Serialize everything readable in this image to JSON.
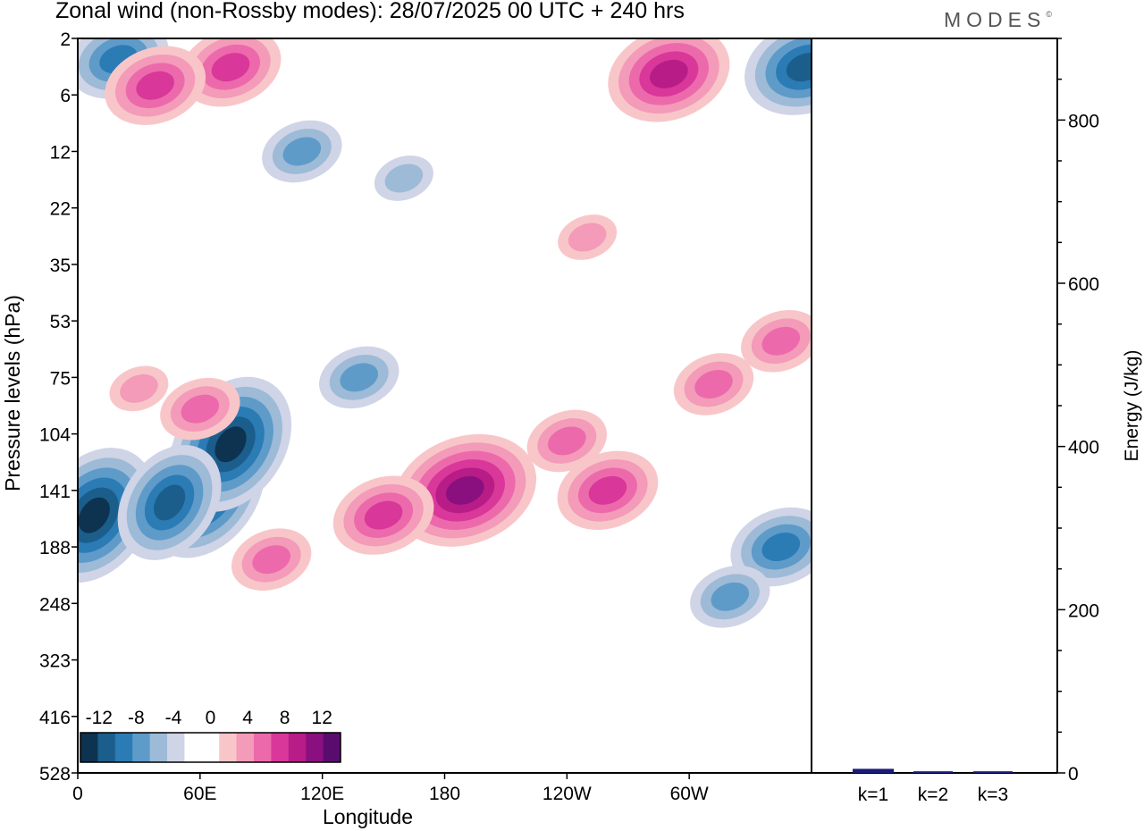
{
  "title": "Zonal wind (non-Rossby modes):  28/07/2025  00 UTC  + 240 hrs",
  "logo": "MODES",
  "logo_mark": "©",
  "colors": {
    "neg6": "#0d3350",
    "neg5": "#1b5e8c",
    "neg4": "#2b7bb5",
    "neg3": "#5e9bc9",
    "neg2": "#9dbad7",
    "neg1": "#cfd4e6",
    "zero": "#ffffff",
    "pos1": "#f8c6c9",
    "pos2": "#f39bb9",
    "pos3": "#ec6aab",
    "pos4": "#d93799",
    "pos5": "#b81c86",
    "pos6": "#8a1080",
    "pos7": "#5a0c6e",
    "bar": "#1a1a7a"
  },
  "chart_data": [
    {
      "type": "heatmap",
      "title": "Zonal wind (non-Rossby modes):  28/07/2025  00 UTC  + 240 hrs",
      "xlabel": "Longitude",
      "ylabel": "Pressure levels (hPa)",
      "x_ticks": [
        "0",
        "60E",
        "120E",
        "180",
        "120W",
        "60W"
      ],
      "x_tick_values": [
        0,
        60,
        120,
        180,
        240,
        300
      ],
      "xlim": [
        0,
        360
      ],
      "y_ticks": [
        "2",
        "6",
        "12",
        "22",
        "35",
        "53",
        "75",
        "104",
        "141",
        "188",
        "248",
        "323",
        "416",
        "528"
      ],
      "colorbar": {
        "labels": [
          "-12",
          "-8",
          "-4",
          "0",
          "4",
          "8",
          "12"
        ],
        "levels": [
          -14,
          -12,
          -10,
          -8,
          -6,
          -4,
          -2,
          0,
          2,
          4,
          6,
          8,
          10,
          12,
          14
        ]
      },
      "features": [
        {
          "lon": 62,
          "level": 141,
          "value": -15
        },
        {
          "lon": 75,
          "level": 110,
          "value": -14
        },
        {
          "lon": 8,
          "level": 160,
          "value": -11
        },
        {
          "lon": 45,
          "level": 150,
          "value": -10
        },
        {
          "lon": 20,
          "level": 3,
          "value": -8
        },
        {
          "lon": 357,
          "level": 3.5,
          "value": -10
        },
        {
          "lon": 138,
          "level": 75,
          "value": -6
        },
        {
          "lon": 110,
          "level": 12,
          "value": -6
        },
        {
          "lon": 160,
          "level": 16,
          "value": -4
        },
        {
          "lon": 345,
          "level": 188,
          "value": -8
        },
        {
          "lon": 320,
          "level": 240,
          "value": -6
        },
        {
          "lon": 190,
          "level": 141,
          "value": 13
        },
        {
          "lon": 150,
          "level": 160,
          "value": 7
        },
        {
          "lon": 95,
          "level": 200,
          "value": 6
        },
        {
          "lon": 260,
          "level": 141,
          "value": 8
        },
        {
          "lon": 240,
          "level": 108,
          "value": 6
        },
        {
          "lon": 75,
          "level": 3.5,
          "value": 8
        },
        {
          "lon": 290,
          "level": 4,
          "value": 10
        },
        {
          "lon": 38,
          "level": 5,
          "value": 8
        },
        {
          "lon": 30,
          "level": 80,
          "value": 4
        },
        {
          "lon": 60,
          "level": 90,
          "value": 5
        },
        {
          "lon": 312,
          "level": 78,
          "value": 6
        },
        {
          "lon": 250,
          "level": 28,
          "value": 4
        },
        {
          "lon": 345,
          "level": 60,
          "value": 5
        }
      ]
    },
    {
      "type": "bar",
      "ylabel": "Energy (J/kg)",
      "categories": [
        "k=1",
        "k=2",
        "k=3"
      ],
      "values": [
        5,
        2,
        2
      ],
      "ylim": [
        0,
        900
      ],
      "y_ticks": [
        0,
        200,
        400,
        600,
        800
      ]
    }
  ]
}
